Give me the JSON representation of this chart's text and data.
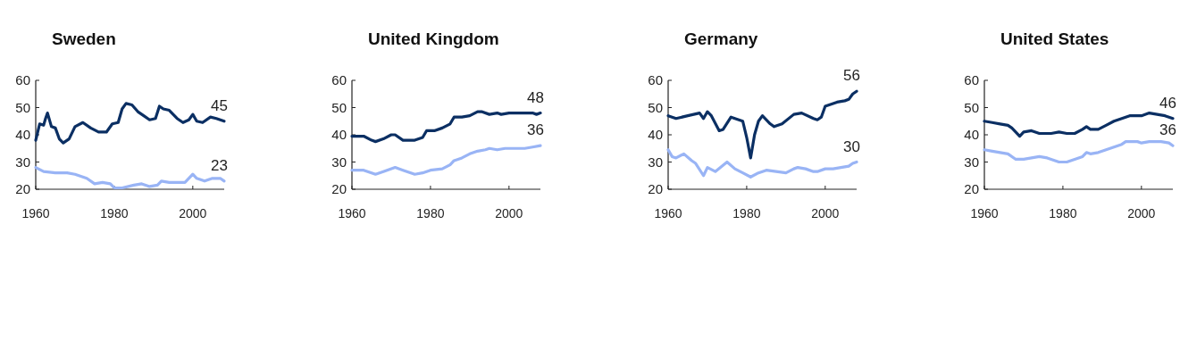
{
  "chart_data": [
    {
      "type": "line",
      "title": "Sweden",
      "xlim": [
        1960,
        2008
      ],
      "ylim": [
        20,
        60
      ],
      "xticks": [
        1960,
        1980,
        2000
      ],
      "yticks": [
        20,
        30,
        40,
        50,
        60
      ],
      "series": [
        {
          "color": "#0b2f63",
          "x": [
            1960,
            1961,
            1962,
            1962.5,
            1963,
            1964,
            1965,
            1966,
            1967,
            1968.5,
            1970,
            1972,
            1974,
            1976,
            1978,
            1979.5,
            1981,
            1982,
            1983,
            1984.5,
            1986,
            1987.5,
            1989,
            1990.5,
            1991.5,
            1992.5,
            1994,
            1996,
            1997.5,
            1999,
            2000,
            2001,
            2002.5,
            2004.5,
            2006,
            2008
          ],
          "values": [
            38,
            44,
            43.5,
            46,
            48,
            43,
            42.5,
            38.5,
            37,
            38.5,
            43,
            44.5,
            42.5,
            41,
            41,
            44,
            44.5,
            49.5,
            51.5,
            51,
            48.5,
            47,
            45.5,
            46,
            50.5,
            49.5,
            49,
            46,
            44.5,
            45.5,
            47.5,
            45,
            44.5,
            46.5,
            46,
            45
          ],
          "value_labels": [
            null,
            null,
            null,
            null,
            null,
            null,
            null,
            null,
            null,
            null,
            null,
            null,
            null,
            null,
            null,
            null,
            null,
            null,
            null,
            null,
            null,
            null,
            null,
            null,
            null,
            null,
            null,
            null,
            null,
            null,
            null,
            null,
            null,
            null,
            null,
            "45"
          ]
        },
        {
          "color": "#99b4f5",
          "x": [
            1960,
            1962,
            1965,
            1968,
            1970,
            1973,
            1975,
            1977,
            1979,
            1980,
            1982,
            1985,
            1987,
            1989,
            1991,
            1992,
            1994,
            1996,
            1998,
            2000,
            2001,
            2003,
            2005,
            2007,
            2008
          ],
          "values": [
            28,
            26.5,
            26,
            26,
            25.5,
            24,
            22,
            22.5,
            22,
            20.5,
            20.5,
            21.5,
            22,
            21,
            21.5,
            23,
            22.5,
            22.5,
            22.5,
            25.5,
            24,
            23,
            24,
            24,
            23
          ],
          "value_labels": [
            null,
            null,
            null,
            null,
            null,
            null,
            null,
            null,
            null,
            null,
            null,
            null,
            null,
            null,
            null,
            null,
            null,
            null,
            null,
            null,
            null,
            null,
            null,
            null,
            "23"
          ]
        }
      ]
    },
    {
      "type": "line",
      "title": "United Kingdom",
      "xlim": [
        1960,
        2008
      ],
      "ylim": [
        20,
        60
      ],
      "xticks": [
        1960,
        1980,
        2000
      ],
      "yticks": [
        20,
        30,
        40,
        50,
        60
      ],
      "series": [
        {
          "color": "#0b2f63",
          "x": [
            1960,
            1963,
            1965,
            1966,
            1968,
            1970,
            1971,
            1973,
            1976,
            1978,
            1979,
            1981,
            1983,
            1985,
            1986,
            1988,
            1990,
            1992,
            1993,
            1995,
            1997,
            1998,
            2000,
            2003,
            2006,
            2007,
            2008
          ],
          "values": [
            39.5,
            39.5,
            38,
            37.5,
            38.5,
            40,
            40,
            38,
            38,
            39,
            41.5,
            41.5,
            42.5,
            44,
            46.5,
            46.5,
            47,
            48.5,
            48.5,
            47.5,
            48,
            47.5,
            48,
            48,
            48,
            47.5,
            48
          ],
          "value_labels": [
            null,
            null,
            null,
            null,
            null,
            null,
            null,
            null,
            null,
            null,
            null,
            null,
            null,
            null,
            null,
            null,
            null,
            null,
            null,
            null,
            null,
            null,
            null,
            null,
            null,
            null,
            "48"
          ]
        },
        {
          "color": "#99b4f5",
          "x": [
            1960,
            1963,
            1966,
            1968,
            1971,
            1973,
            1976,
            1978,
            1980,
            1983,
            1985,
            1986,
            1988,
            1990,
            1992,
            1994,
            1995,
            1997,
            1999,
            2002,
            2004,
            2006,
            2008
          ],
          "values": [
            27,
            27,
            25.5,
            26.5,
            28,
            27,
            25.5,
            26,
            27,
            27.5,
            29,
            30.5,
            31.5,
            33,
            34,
            34.5,
            35,
            34.5,
            35,
            35,
            35,
            35.5,
            36
          ],
          "value_labels": [
            null,
            null,
            null,
            null,
            null,
            null,
            null,
            null,
            null,
            null,
            null,
            null,
            null,
            null,
            null,
            null,
            null,
            null,
            null,
            null,
            null,
            null,
            "36"
          ]
        }
      ]
    },
    {
      "type": "line",
      "title": "Germany",
      "xlim": [
        1960,
        2008
      ],
      "ylim": [
        20,
        60
      ],
      "xticks": [
        1960,
        1980,
        2000
      ],
      "yticks": [
        20,
        30,
        40,
        50,
        60
      ],
      "series": [
        {
          "color": "#0b2f63",
          "x": [
            1960,
            1962,
            1965,
            1968,
            1969,
            1970,
            1971,
            1973,
            1974,
            1976,
            1979,
            1980,
            1981,
            1982,
            1983,
            1984,
            1986,
            1987,
            1989,
            1992,
            1994,
            1997,
            1998,
            1999,
            2000,
            2001,
            2003,
            2005,
            2006,
            2007,
            2008
          ],
          "values": [
            47,
            46,
            47,
            48,
            46,
            48.5,
            47,
            41.5,
            42,
            46.5,
            45,
            39,
            31.5,
            40,
            45,
            47,
            44,
            43,
            44,
            47.5,
            48,
            46,
            45.5,
            46.5,
            50.5,
            51,
            52,
            52.5,
            53,
            55,
            56
          ],
          "value_labels": [
            null,
            null,
            null,
            null,
            null,
            null,
            null,
            null,
            null,
            null,
            null,
            null,
            null,
            null,
            null,
            null,
            null,
            null,
            null,
            null,
            null,
            null,
            null,
            null,
            null,
            null,
            null,
            null,
            null,
            null,
            "56"
          ]
        },
        {
          "color": "#99b4f5",
          "x": [
            1960,
            1961,
            1962,
            1964,
            1966,
            1967,
            1969,
            1970,
            1972,
            1975,
            1977,
            1979,
            1981,
            1983,
            1985,
            1990,
            1992,
            1993,
            1995,
            1997,
            1998,
            2000,
            2002,
            2004,
            2006,
            2007,
            2008
          ],
          "values": [
            34.5,
            32,
            31.5,
            33,
            30.5,
            29.5,
            25,
            28,
            26.5,
            30,
            27.5,
            26,
            24.5,
            26,
            27,
            26,
            27.5,
            28,
            27.5,
            26.5,
            26.5,
            27.5,
            27.5,
            28,
            28.5,
            29.5,
            30
          ],
          "value_labels": [
            null,
            null,
            null,
            null,
            null,
            null,
            null,
            null,
            null,
            null,
            null,
            null,
            null,
            null,
            null,
            null,
            null,
            null,
            null,
            null,
            null,
            null,
            null,
            null,
            null,
            null,
            "30"
          ]
        }
      ]
    },
    {
      "type": "line",
      "title": "United States",
      "xlim": [
        1960,
        2008
      ],
      "ylim": [
        20,
        60
      ],
      "xticks": [
        1960,
        1980,
        2000
      ],
      "yticks": [
        20,
        30,
        40,
        50,
        60
      ],
      "series": [
        {
          "color": "#0b2f63",
          "x": [
            1960,
            1962,
            1964,
            1966,
            1967,
            1969,
            1970,
            1972,
            1974,
            1977,
            1979,
            1981,
            1983,
            1985,
            1986,
            1987,
            1989,
            1991,
            1993,
            1995,
            1997,
            2000,
            2002,
            2004,
            2006,
            2008
          ],
          "values": [
            45,
            44.5,
            44,
            43.5,
            42.5,
            39.5,
            41,
            41.5,
            40.5,
            40.5,
            41,
            40.5,
            40.5,
            42,
            43,
            42,
            42,
            43.5,
            45,
            46,
            47,
            47,
            48,
            47.5,
            47,
            46
          ],
          "value_labels": [
            null,
            null,
            null,
            null,
            null,
            null,
            null,
            null,
            null,
            null,
            null,
            null,
            null,
            null,
            null,
            null,
            null,
            null,
            null,
            null,
            null,
            null,
            null,
            null,
            null,
            "46"
          ]
        },
        {
          "color": "#99b4f5",
          "x": [
            1960,
            1962,
            1964,
            1966,
            1968,
            1970,
            1972,
            1974,
            1976,
            1979,
            1981,
            1983,
            1985,
            1986,
            1987,
            1989,
            1991,
            1993,
            1995,
            1996,
            1999,
            2000,
            2002,
            2005,
            2007,
            2008
          ],
          "values": [
            34.5,
            34,
            33.5,
            33,
            31,
            31,
            31.5,
            32,
            31.5,
            30,
            30,
            31,
            32,
            33.5,
            33,
            33.5,
            34.5,
            35.5,
            36.5,
            37.5,
            37.5,
            37,
            37.5,
            37.5,
            37,
            36
          ],
          "value_labels": [
            null,
            null,
            null,
            null,
            null,
            null,
            null,
            null,
            null,
            null,
            null,
            null,
            null,
            null,
            null,
            null,
            null,
            null,
            null,
            null,
            null,
            null,
            null,
            null,
            null,
            "36"
          ]
        }
      ]
    }
  ]
}
